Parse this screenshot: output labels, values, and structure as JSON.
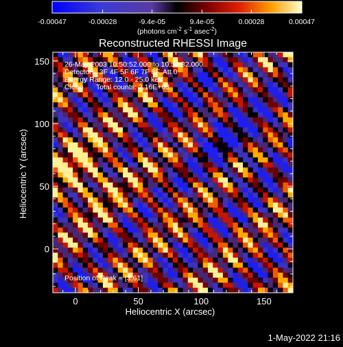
{
  "chart_data": {
    "type": "heatmap",
    "title": "Reconstructed RHESSI Image",
    "xlabel": "Heliocentric X (arcsec)",
    "ylabel": "Heliocentric Y (arcsec)",
    "xlim": [
      -18,
      173
    ],
    "ylim": [
      -35,
      157
    ],
    "xticks": [
      0,
      50,
      100,
      150
    ],
    "yticks": [
      0,
      50,
      100,
      150
    ],
    "xtick_labels": [
      "0",
      "50",
      "100",
      "150"
    ],
    "ytick_labels": [
      "0",
      "50",
      "100",
      "150"
    ],
    "colorbar": {
      "min": -0.00047,
      "max": 0.00047,
      "ticks": [
        -0.00047,
        -0.00028,
        -9.4e-05,
        9.4e-05,
        0.00028,
        0.00047
      ],
      "tick_labels": [
        "-0.00047",
        "-0.00028",
        "-9.4e-05",
        "9.4e-05",
        "0.00028",
        "0.00047"
      ],
      "label_parts": [
        "(photons cm",
        "-2",
        " s",
        "-1",
        " asec",
        "-2",
        ")"
      ]
    },
    "annotations": {
      "time_range": "26-May-2003 10:50:52.000 to 10:54:32.000",
      "detectors": "Detectors: 3F 4F 5F 6F 7F 8F, Att 0",
      "energy": "Energy Range: 12.0 - 25.0 keV",
      "algorithm": "Clean",
      "total_counts": "Total counts: 2.16E+03",
      "peak": "Position of Peak = [3,61]"
    },
    "peak_position": [
      3,
      61
    ],
    "footer_date": "1-May-2022 21:16"
  }
}
